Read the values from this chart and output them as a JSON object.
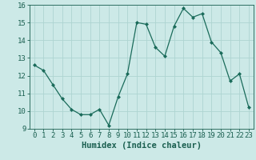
{
  "x": [
    0,
    1,
    2,
    3,
    4,
    5,
    6,
    7,
    8,
    9,
    10,
    11,
    12,
    13,
    14,
    15,
    16,
    17,
    18,
    19,
    20,
    21,
    22,
    23
  ],
  "y": [
    12.6,
    12.3,
    11.5,
    10.7,
    10.1,
    9.8,
    9.8,
    10.1,
    9.2,
    10.8,
    12.1,
    15.0,
    14.9,
    13.6,
    13.1,
    14.8,
    15.8,
    15.3,
    15.5,
    13.9,
    13.3,
    11.7,
    12.1,
    10.2
  ],
  "line_color": "#1a6b5a",
  "marker": "D",
  "marker_size": 2.0,
  "bg_color": "#cce9e7",
  "grid_color": "#aed4d1",
  "xlabel": "Humidex (Indice chaleur)",
  "ylim": [
    9,
    16
  ],
  "xlim_min": -0.5,
  "xlim_max": 23.5,
  "yticks": [
    9,
    10,
    11,
    12,
    13,
    14,
    15,
    16
  ],
  "xticks": [
    0,
    1,
    2,
    3,
    4,
    5,
    6,
    7,
    8,
    9,
    10,
    11,
    12,
    13,
    14,
    15,
    16,
    17,
    18,
    19,
    20,
    21,
    22,
    23
  ],
  "font_color": "#1a5f50",
  "font_size": 6.5,
  "label_font_size": 7.5
}
